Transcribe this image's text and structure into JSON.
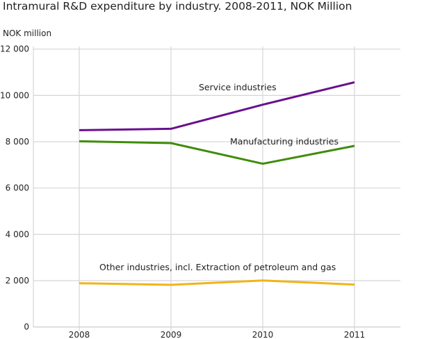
{
  "chart_data": {
    "type": "line",
    "title": "Intramural R&D expenditure by industry. 2008-2011, NOK Million",
    "ylabel": "NOK million",
    "xlabel": "",
    "categories": [
      "2008",
      "2009",
      "2010",
      "2011"
    ],
    "ylim": [
      0,
      12000
    ],
    "yticks": [
      0,
      2000,
      4000,
      6000,
      8000,
      10000,
      12000
    ],
    "ytick_labels": [
      "0",
      "2 000",
      "4 000",
      "6 000",
      "8 000",
      "10 000",
      "12 000"
    ],
    "grid": true,
    "legend": "inline labels",
    "series": [
      {
        "name": "Service industries",
        "color": "#6a0f8e",
        "values": [
          8500,
          8560,
          9600,
          10570
        ]
      },
      {
        "name": "Manufacturing industries",
        "color": "#3f8c0a",
        "values": [
          8020,
          7940,
          7050,
          7820
        ]
      },
      {
        "name": "Other industries, incl. Extraction of petroleum and gas",
        "color": "#f0b419",
        "values": [
          1890,
          1820,
          2010,
          1830
        ]
      }
    ]
  }
}
